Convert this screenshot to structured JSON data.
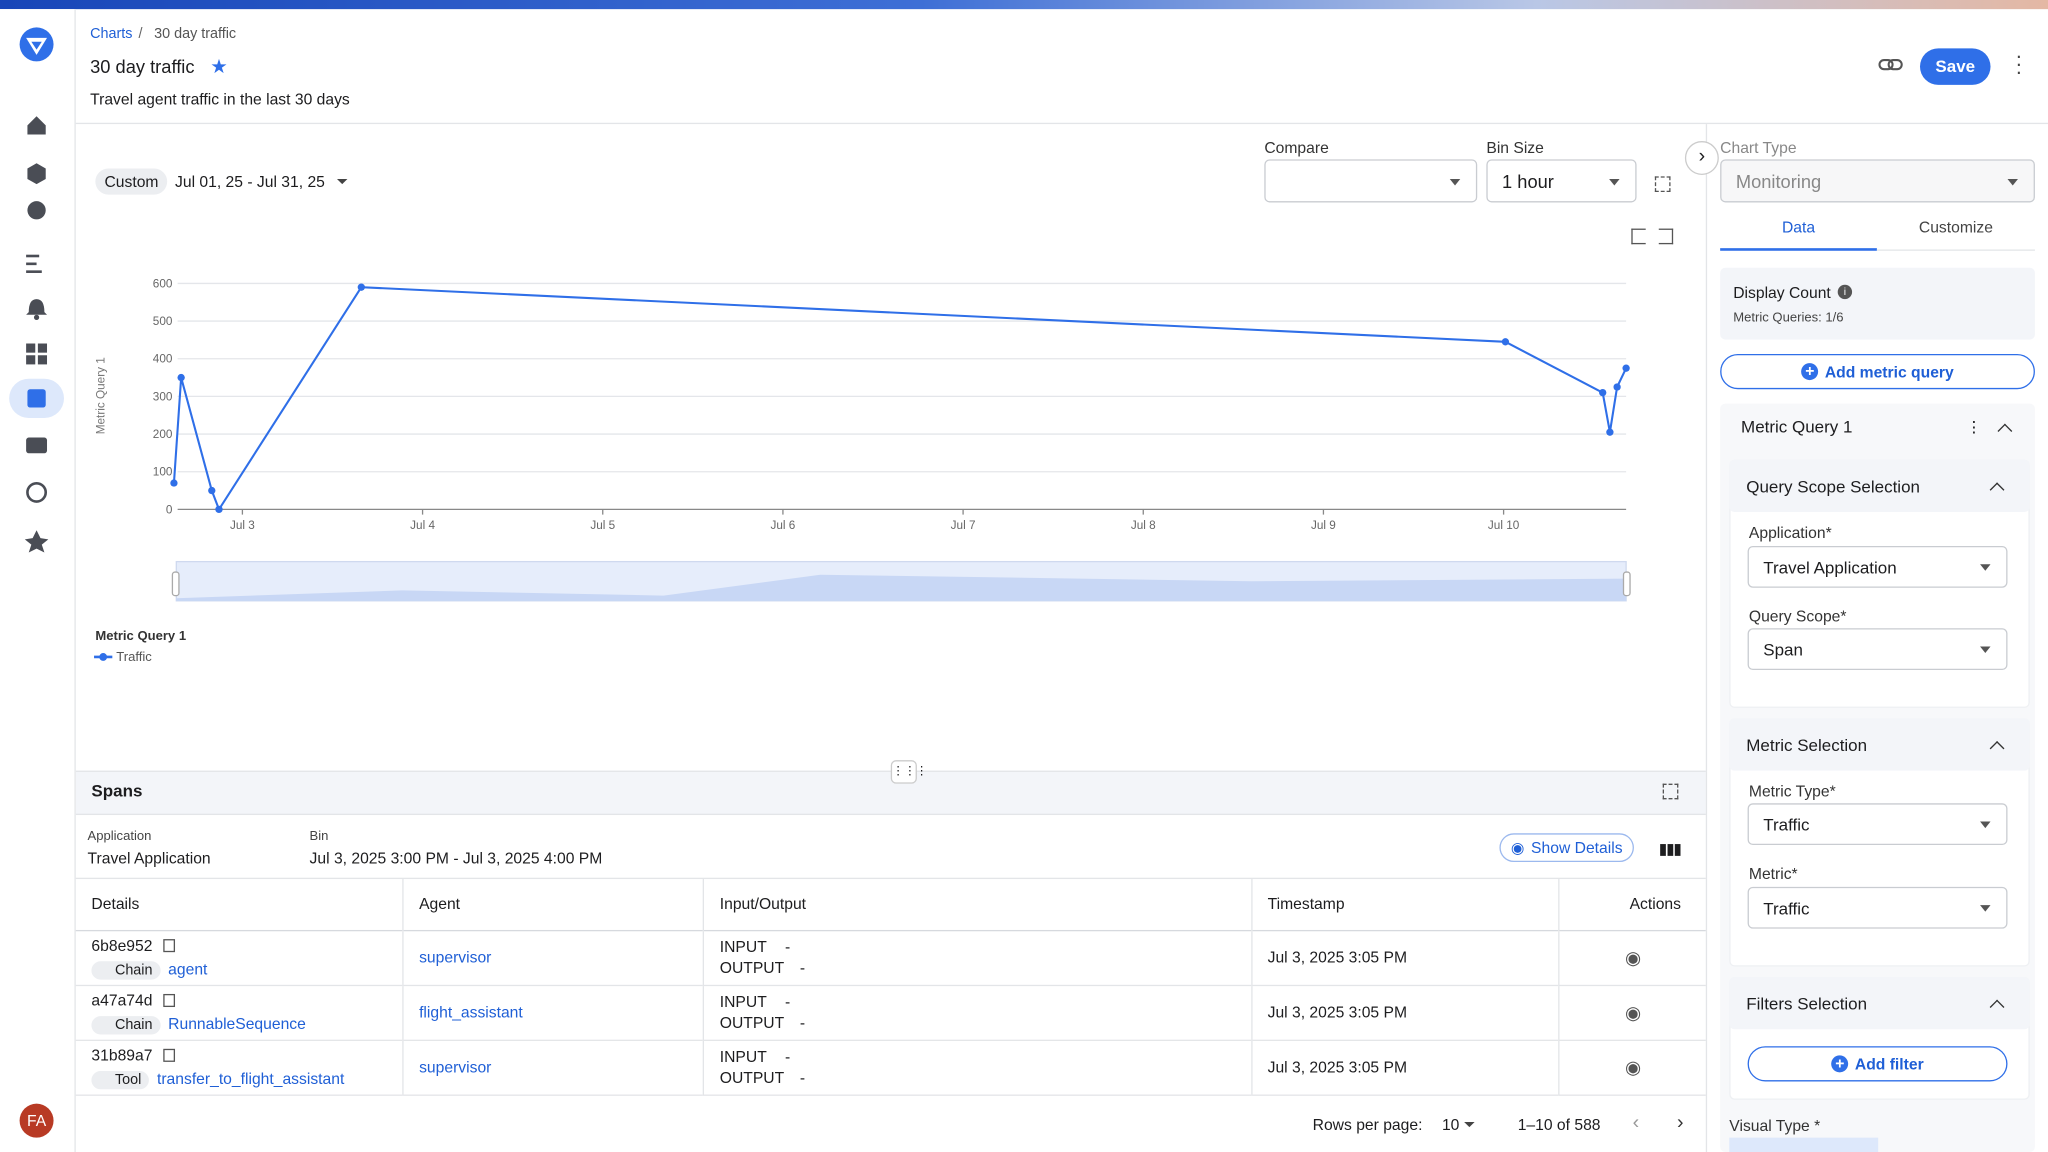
{
  "header": {
    "breadcrumb": [
      "Charts",
      "30 day traffic"
    ],
    "title": "30 day traffic",
    "subtitle": "Travel agent traffic in the last 30 days",
    "save": "Save"
  },
  "controls": {
    "date_preset": "Custom",
    "date_range": "Jul 01, 25 - Jul 31, 25",
    "compare_label": "Compare",
    "bin_size_label": "Bin Size",
    "bin_size": "1 hour"
  },
  "chart_data": {
    "type": "line",
    "y_label": "Metric Query 1",
    "legend_title": "Metric Query 1",
    "x": [
      2.62,
      2.66,
      2.83,
      2.87,
      3.66,
      10.01,
      10.55,
      10.59,
      10.63,
      10.68
    ],
    "series": [
      {
        "name": "Traffic",
        "color": "#2f6fe8",
        "values": [
          70,
          350,
          50,
          0,
          590,
          445,
          310,
          205,
          325,
          375
        ]
      }
    ],
    "xlim": [
      2.51,
      10.68
    ],
    "xticks": [
      {
        "value": 3,
        "label": "Jul 3"
      },
      {
        "value": 4,
        "label": "Jul 4"
      },
      {
        "value": 5,
        "label": "Jul 5"
      },
      {
        "value": 6,
        "label": "Jul 6"
      },
      {
        "value": 7,
        "label": "Jul 7"
      },
      {
        "value": 8,
        "label": "Jul 8"
      },
      {
        "value": 9,
        "label": "Jul 9"
      },
      {
        "value": 10,
        "label": "Jul 10"
      }
    ],
    "ylim": [
      0,
      600
    ],
    "yticks": [
      0,
      100,
      200,
      300,
      400,
      500,
      600
    ],
    "grid": true
  },
  "spans": {
    "title": "Spans",
    "application_label": "Application",
    "application": "Travel Application",
    "bin_label": "Bin",
    "bin": "Jul 3, 2025 3:00 PM - Jul 3, 2025 4:00 PM",
    "show_details": "Show Details",
    "columns": [
      "Details",
      "Agent",
      "Input/Output",
      "Timestamp",
      "Actions"
    ],
    "rows": [
      {
        "id": "6b8e952",
        "kind": "Chain",
        "name": "agent",
        "agent": "supervisor",
        "input": "INPUT",
        "input_value": "-",
        "output": "OUTPUT",
        "output_value": "-",
        "timestamp": "Jul 3, 2025 3:05 PM"
      },
      {
        "id": "a47a74d",
        "kind": "Chain",
        "name": "RunnableSequence",
        "agent": "flight_assistant",
        "input": "INPUT",
        "input_value": "-",
        "output": "OUTPUT",
        "output_value": "-",
        "timestamp": "Jul 3, 2025 3:05 PM"
      },
      {
        "id": "31b89a7",
        "kind": "Tool",
        "name": "transfer_to_flight_assistant",
        "agent": "supervisor",
        "input": "INPUT",
        "input_value": "-",
        "output": "OUTPUT",
        "output_value": "-",
        "timestamp": "Jul 3, 2025 3:05 PM"
      }
    ],
    "rows_per_page_label": "Rows per page:",
    "rows_per_page": "10",
    "range": "1–10 of 588"
  },
  "panel": {
    "chart_type_label": "Chart Type",
    "chart_type": "Monitoring",
    "tabs": [
      "Data",
      "Customize"
    ],
    "display_count": "Display Count",
    "metric_queries": "Metric Queries: 1/6",
    "add_metric_query": "Add metric query",
    "query_title": "Metric Query 1",
    "scope_section": "Query Scope Selection",
    "application_label": "Application*",
    "application": "Travel Application",
    "scope_label": "Query Scope*",
    "scope": "Span",
    "metric_section": "Metric Selection",
    "metric_type_label": "Metric Type*",
    "metric_type": "Traffic",
    "metric_label": "Metric*",
    "metric": "Traffic",
    "filters_section": "Filters Selection",
    "add_filter": "Add filter",
    "visual_type_label": "Visual Type *"
  },
  "user": {
    "initials": "FA"
  }
}
